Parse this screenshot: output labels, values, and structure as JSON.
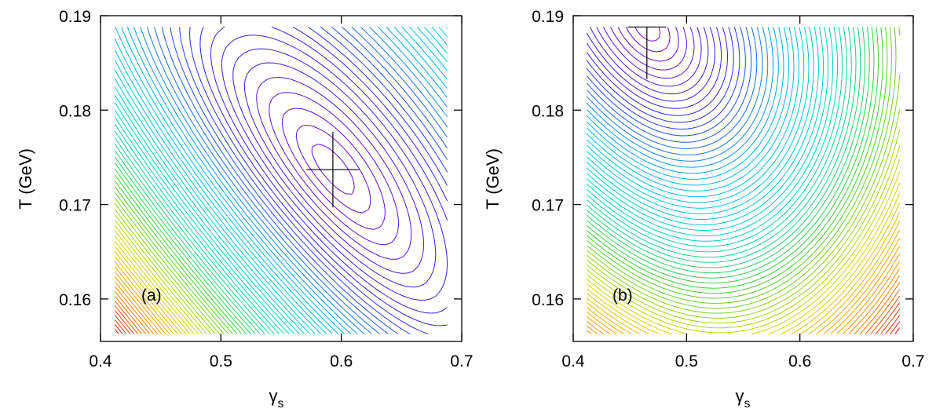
{
  "chart_data": [
    {
      "type": "contour",
      "panel_label": "(a)",
      "xlabel": "γ",
      "xlabel_sub": "s",
      "ylabel": "T (GeV)",
      "xlim": [
        0.4,
        0.7
      ],
      "ylim": [
        0.1555,
        0.19
      ],
      "xticks": [
        0.4,
        0.5,
        0.6,
        0.7
      ],
      "xtick_labels": [
        "0.4",
        "0.5",
        "0.6",
        "0.7"
      ],
      "yticks": [
        0.16,
        0.17,
        0.18,
        0.19
      ],
      "ytick_labels": [
        "0.16",
        "0.17",
        "0.18",
        "0.19"
      ],
      "data_region": {
        "x": [
          0.412,
          0.688
        ],
        "y": [
          0.1563,
          0.1888
        ]
      },
      "minimum": {
        "x": 0.593,
        "y": 0.1737,
        "xerr": 0.022,
        "yerr": 0.004
      },
      "contour_levels": 70,
      "colormap": [
        "#7a00d6",
        "#2a24e8",
        "#00b8e6",
        "#00d3c0",
        "#3cd12a",
        "#d8d400",
        "#ff8a00",
        "#e60000"
      ]
    },
    {
      "type": "contour",
      "panel_label": "(b)",
      "xlabel": "γ",
      "xlabel_sub": "s",
      "ylabel": "T (GeV)",
      "xlim": [
        0.4,
        0.7
      ],
      "ylim": [
        0.1555,
        0.19
      ],
      "xticks": [
        0.4,
        0.5,
        0.6,
        0.7
      ],
      "xtick_labels": [
        "0.4",
        "0.5",
        "0.6",
        "0.7"
      ],
      "yticks": [
        0.16,
        0.17,
        0.18,
        0.19
      ],
      "ytick_labels": [
        "0.16",
        "0.17",
        "0.18",
        "0.19"
      ],
      "data_region": {
        "x": [
          0.412,
          0.688
        ],
        "y": [
          0.1563,
          0.1888
        ]
      },
      "minimum": {
        "x": 0.465,
        "y": 0.1888,
        "xerr": 0.017,
        "yerr": 0.0055
      },
      "contour_levels": 70,
      "colormap": [
        "#7a00d6",
        "#2a24e8",
        "#00b8e6",
        "#00d3c0",
        "#3cd12a",
        "#d8d400",
        "#ff8a00",
        "#e60000"
      ]
    }
  ]
}
